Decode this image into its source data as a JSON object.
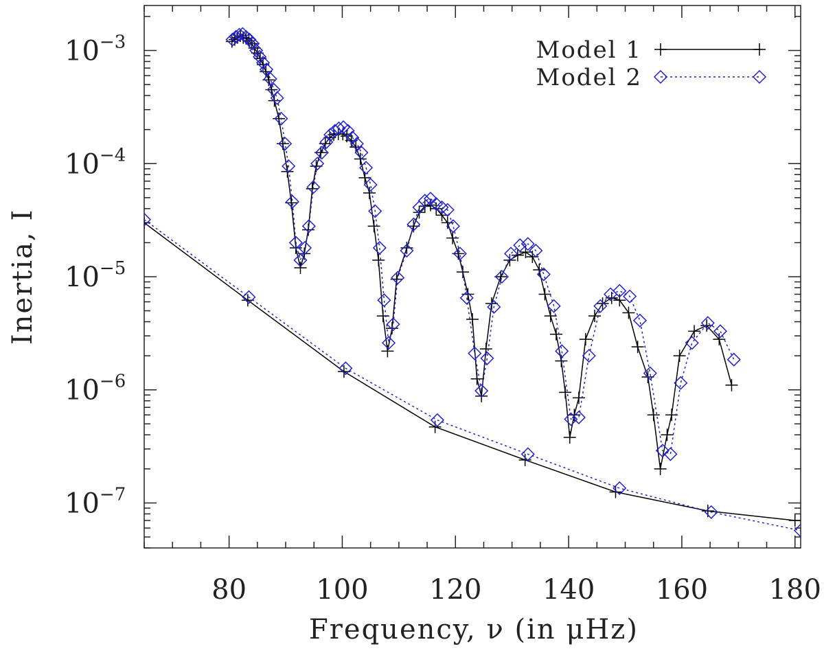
{
  "chart_data": {
    "type": "line",
    "title": "",
    "xlabel": "Frequency, ν (in μHz)",
    "ylabel": "Inertia, I",
    "xlim": [
      65,
      181
    ],
    "ylim": [
      4e-08,
      0.0025
    ],
    "yscale": "log",
    "xticks": [
      80,
      100,
      120,
      140,
      160,
      180
    ],
    "yticks": [
      {
        "value": 0.001,
        "mantissa": "10",
        "exponent": "−3"
      },
      {
        "value": 0.0001,
        "mantissa": "10",
        "exponent": "−4"
      },
      {
        "value": 1e-05,
        "mantissa": "10",
        "exponent": "−5"
      },
      {
        "value": 1e-06,
        "mantissa": "10",
        "exponent": "−6"
      },
      {
        "value": 1e-07,
        "mantissa": "10",
        "exponent": "−7"
      }
    ],
    "legend_position": "top-right",
    "series": [
      {
        "name": "Model 1",
        "marker": "plus",
        "line": "solid",
        "color": "#000000",
        "points": [
          [
            80.5,
            0.0012
          ],
          [
            81.0,
            0.00125
          ],
          [
            81.5,
            0.0013
          ],
          [
            82.0,
            0.00135
          ],
          [
            82.5,
            0.0013
          ],
          [
            83.0,
            0.00128
          ],
          [
            83.5,
            0.00122
          ],
          [
            84.0,
            0.00115
          ],
          [
            84.5,
            0.00105
          ],
          [
            85.0,
            0.00095
          ],
          [
            85.5,
            0.00085
          ],
          [
            86.0,
            0.00075
          ],
          [
            86.5,
            0.00065
          ],
          [
            87.0,
            0.00055
          ],
          [
            87.5,
            0.00045
          ],
          [
            88.0,
            0.00036
          ],
          [
            88.8,
            0.00025
          ],
          [
            89.5,
            0.00015
          ],
          [
            90.3,
            8.5e-05
          ],
          [
            91.0,
            4.5e-05
          ],
          [
            91.8,
            1.8e-05
          ],
          [
            92.6,
            1.2e-05
          ],
          [
            93.3,
            1.6e-05
          ],
          [
            94.0,
            2.6e-05
          ],
          [
            94.7,
            6e-05
          ],
          [
            95.4,
            9.5e-05
          ],
          [
            96.2,
            0.000125
          ],
          [
            97.0,
            0.00015
          ],
          [
            97.8,
            0.00017
          ],
          [
            98.5,
            0.00018
          ],
          [
            99.3,
            0.000183
          ],
          [
            100.1,
            0.000182
          ],
          [
            100.8,
            0.000175
          ],
          [
            101.6,
            0.00016
          ],
          [
            102.4,
            0.00014
          ],
          [
            103.2,
            0.00011
          ],
          [
            104.0,
            7.5e-05
          ],
          [
            104.8,
            5.5e-05
          ],
          [
            105.6,
            2.8e-05
          ],
          [
            106.4,
            1.4e-05
          ],
          [
            107.2,
            4.5e-06
          ],
          [
            108.0,
            2.2e-06
          ],
          [
            108.8,
            3.5e-06
          ],
          [
            109.6,
            9.5e-06
          ],
          [
            111.4,
            1.8e-05
          ],
          [
            112.6,
            2.8e-05
          ],
          [
            113.6,
            3.7e-05
          ],
          [
            114.6,
            4.2e-05
          ],
          [
            115.6,
            4.3e-05
          ],
          [
            116.6,
            4e-05
          ],
          [
            117.6,
            3.5e-05
          ],
          [
            118.6,
            3e-05
          ],
          [
            119.5,
            2.2e-05
          ],
          [
            120.5,
            1.6e-05
          ],
          [
            121.3,
            1.1e-05
          ],
          [
            122.2,
            7e-06
          ],
          [
            123.0,
            4.2e-06
          ],
          [
            123.8,
            1.25e-06
          ],
          [
            124.6,
            8.8e-07
          ],
          [
            125.4,
            2.3e-06
          ],
          [
            126.4,
            5.8e-06
          ],
          [
            128.0,
            1e-05
          ],
          [
            129.6,
            1.4e-05
          ],
          [
            131.0,
            1.55e-05
          ],
          [
            132.4,
            1.65e-05
          ],
          [
            133.6,
            1.5e-05
          ],
          [
            134.8,
            1.15e-05
          ],
          [
            135.8,
            7e-06
          ],
          [
            136.8,
            4.5e-06
          ],
          [
            137.8,
            3.1e-06
          ],
          [
            138.7,
            1.8e-06
          ],
          [
            139.4,
            9.5e-07
          ],
          [
            140.2,
            3.8e-07
          ],
          [
            141.0,
            6e-07
          ],
          [
            141.8,
            8.5e-07
          ],
          [
            143.0,
            2.8e-06
          ],
          [
            144.6,
            4.5e-06
          ],
          [
            146.0,
            5.8e-06
          ],
          [
            147.6,
            6.5e-06
          ],
          [
            149.0,
            6.2e-06
          ],
          [
            150.6,
            4.8e-06
          ],
          [
            152.2,
            2.4e-06
          ],
          [
            154.0,
            1.3e-06
          ],
          [
            155.0,
            6e-07
          ],
          [
            156.2,
            2e-07
          ],
          [
            157.4,
            4e-07
          ],
          [
            158.2,
            6e-07
          ],
          [
            159.6,
            2e-06
          ],
          [
            162.2,
            3.3e-06
          ],
          [
            164.4,
            3.7e-06
          ],
          [
            166.6,
            2.8e-06
          ],
          [
            168.8,
            1.1e-06
          ]
        ]
      },
      {
        "name": "Model 2",
        "marker": "diamond",
        "line": "dotted",
        "color": "#2222cc",
        "points": [
          [
            80.6,
            0.00125
          ],
          [
            81.2,
            0.00132
          ],
          [
            81.8,
            0.00138
          ],
          [
            82.4,
            0.0014
          ],
          [
            83.0,
            0.00132
          ],
          [
            83.6,
            0.00125
          ],
          [
            84.2,
            0.00115
          ],
          [
            84.8,
            0.001
          ],
          [
            85.4,
            0.00088
          ],
          [
            86.0,
            0.00078
          ],
          [
            86.6,
            0.00068
          ],
          [
            87.3,
            0.00056
          ],
          [
            87.9,
            0.00045
          ],
          [
            88.5,
            0.00038
          ],
          [
            89.2,
            0.00025
          ],
          [
            89.9,
            0.00015
          ],
          [
            90.5,
            9.5e-05
          ],
          [
            91.2,
            4.6e-05
          ],
          [
            91.8,
            2e-05
          ],
          [
            92.6,
            1.4e-05
          ],
          [
            93.4,
            1.8e-05
          ],
          [
            94.1,
            2.8e-05
          ],
          [
            94.9,
            6.2e-05
          ],
          [
            95.6,
            0.0001
          ],
          [
            96.4,
            0.000125
          ],
          [
            97.2,
            0.000155
          ],
          [
            97.9,
            0.00018
          ],
          [
            98.7,
            0.000195
          ],
          [
            99.4,
            0.000205
          ],
          [
            100.2,
            0.00021
          ],
          [
            101.0,
            0.000195
          ],
          [
            101.8,
            0.00017
          ],
          [
            102.6,
            0.00015
          ],
          [
            103.4,
            0.000125
          ],
          [
            104.2,
            9.2e-05
          ],
          [
            105.0,
            6.5e-05
          ],
          [
            105.8,
            3.8e-05
          ],
          [
            106.6,
            1.8e-05
          ],
          [
            107.4,
            6.2e-06
          ],
          [
            108.2,
            2.6e-06
          ],
          [
            109.0,
            3.8e-06
          ],
          [
            109.8,
            9.8e-06
          ],
          [
            111.4,
            1.7e-05
          ],
          [
            112.6,
            2.9e-05
          ],
          [
            113.6,
            4.1e-05
          ],
          [
            114.6,
            4.7e-05
          ],
          [
            115.6,
            4.9e-05
          ],
          [
            116.6,
            4.4e-05
          ],
          [
            117.6,
            4.1e-05
          ],
          [
            118.6,
            3.9e-05
          ],
          [
            119.6,
            2.8e-05
          ],
          [
            120.8,
            1.6e-05
          ],
          [
            122.0,
            6.5e-06
          ],
          [
            123.4,
            2.1e-06
          ],
          [
            124.6,
            9.8e-07
          ],
          [
            125.6,
            1.9e-06
          ],
          [
            126.8,
            5.4e-06
          ],
          [
            128.2,
            1e-05
          ],
          [
            129.8,
            1.6e-05
          ],
          [
            131.4,
            1.9e-05
          ],
          [
            132.8,
            1.95e-05
          ],
          [
            134.2,
            1.7e-05
          ],
          [
            135.6,
            1.05e-05
          ],
          [
            137.4,
            5.5e-06
          ],
          [
            138.8,
            2.2e-06
          ],
          [
            140.4,
            5.5e-07
          ],
          [
            141.8,
            5.7e-07
          ],
          [
            143.6,
            2e-06
          ],
          [
            145.6,
            5.5e-06
          ],
          [
            147.4,
            7e-06
          ],
          [
            149.0,
            7.5e-06
          ],
          [
            150.8,
            6.7e-06
          ],
          [
            152.6,
            4.1e-06
          ],
          [
            154.4,
            1.4e-06
          ],
          [
            156.6,
            2.9e-07
          ],
          [
            158.0,
            2.7e-07
          ],
          [
            159.8,
            1.15e-06
          ],
          [
            161.8,
            2.6e-06
          ],
          [
            164.6,
            3.9e-06
          ],
          [
            166.8,
            3.3e-06
          ],
          [
            169.2,
            1.85e-06
          ]
        ]
      },
      {
        "name": "",
        "marker": "plus",
        "line": "solid",
        "color": "#000000",
        "points": [
          [
            65.0,
            3e-05
          ],
          [
            83.3,
            6.2e-06
          ],
          [
            100.3,
            1.45e-06
          ],
          [
            116.4,
            4.7e-07
          ],
          [
            132.3,
            2.4e-07
          ],
          [
            148.3,
            1.25e-07
          ],
          [
            164.6,
            8.5e-08
          ],
          [
            180.0,
            7e-08
          ]
        ]
      },
      {
        "name": "",
        "marker": "diamond",
        "line": "dotted",
        "color": "#2222cc",
        "points": [
          [
            65.0,
            3.2e-05
          ],
          [
            83.5,
            6.6e-06
          ],
          [
            100.6,
            1.55e-06
          ],
          [
            116.8,
            5.4e-07
          ],
          [
            132.8,
            2.7e-07
          ],
          [
            149.0,
            1.35e-07
          ],
          [
            165.2,
            8.3e-08
          ],
          [
            181.0,
            5.7e-08
          ]
        ]
      }
    ]
  }
}
